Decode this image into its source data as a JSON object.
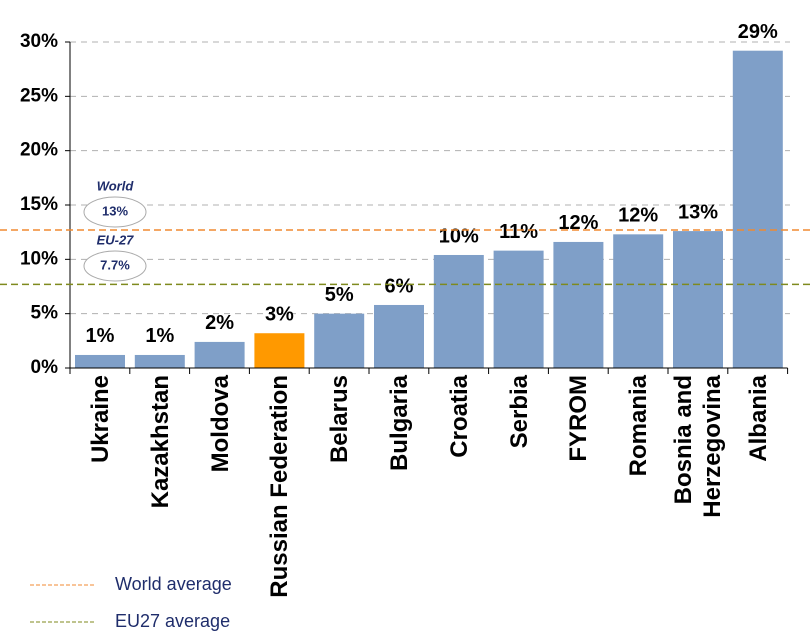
{
  "chart_data": {
    "type": "bar",
    "categories": [
      "Ukraine",
      "Kazakhstan",
      "Moldova",
      "Russian Federation",
      "Belarus",
      "Bulgaria",
      "Croatia",
      "Serbia",
      "FYROM",
      "Romania",
      "Bosnia and Herzegovina",
      "Albania"
    ],
    "values": [
      1.2,
      1.2,
      2.4,
      3.2,
      5.0,
      5.8,
      10.4,
      10.8,
      11.6,
      12.3,
      12.6,
      29.2
    ],
    "value_labels": [
      "1%",
      "1%",
      "2%",
      "3%",
      "5%",
      "6%",
      "10%",
      "11%",
      "12%",
      "12%",
      "13%",
      "29%"
    ],
    "colors": [
      "#7f9fc8",
      "#7f9fc8",
      "#7f9fc8",
      "#ff9900",
      "#7f9fc8",
      "#7f9fc8",
      "#7f9fc8",
      "#7f9fc8",
      "#7f9fc8",
      "#7f9fc8",
      "#7f9fc8",
      "#7f9fc8"
    ],
    "ylim": [
      0,
      30
    ],
    "yticks": [
      {
        "value": 0,
        "label": "0%"
      },
      {
        "value": 5,
        "label": "5%"
      },
      {
        "value": 10,
        "label": "10%"
      },
      {
        "value": 15,
        "label": "15%"
      },
      {
        "value": 20,
        "label": "20%"
      },
      {
        "value": 25,
        "label": "25%"
      },
      {
        "value": 30,
        "label": "30%"
      }
    ],
    "grid": true,
    "reference_lines": [
      {
        "name": "World average",
        "title": "World",
        "value": 12.7,
        "value_label": "13%",
        "color": "#f08a30"
      },
      {
        "name": "EU27 average",
        "title": "EU-27",
        "value": 7.7,
        "value_label": "7.7%",
        "color": "#7f8a1e"
      }
    ]
  }
}
